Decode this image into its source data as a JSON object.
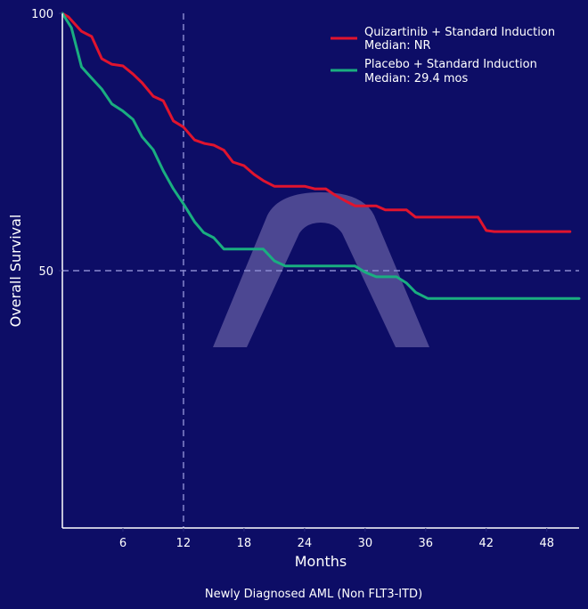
{
  "chart_data": {
    "type": "line",
    "subtype": "kaplan-meier",
    "title": "",
    "subtitle": "Newly Diagnosed AML (Non FLT3-ITD)",
    "xlabel": "Months",
    "ylabel": "Overall Survival",
    "xlim": [
      0,
      51.2
    ],
    "ylim": [
      0,
      100
    ],
    "xticks": [
      6,
      12,
      18,
      24,
      30,
      36,
      42,
      48
    ],
    "yticks": [
      50,
      100
    ],
    "reference_lines": {
      "vertical_x": 12,
      "horizontal_y": 50
    },
    "grid": false,
    "legend_position": "top-right",
    "colors": {
      "background": "#0d0d66",
      "axis": "#ffffff",
      "reference": "#8a8ad0",
      "watermark": "#5a549c"
    },
    "watermark": "arch-logo",
    "series": [
      {
        "name": "Quizartinib + Standard Induction",
        "median_label": "Median: NR",
        "color": "#e0142e",
        "x": [
          0,
          0.6,
          1.9,
          2.9,
          3.9,
          4.9,
          6.0,
          7.0,
          7.9,
          9.0,
          10.0,
          11.0,
          12.0,
          13.1,
          14.1,
          15.0,
          16.0,
          16.9,
          18.0,
          19.0,
          19.9,
          21.0,
          24.0,
          25.0,
          26.1,
          27.0,
          28.1,
          29.0,
          31.1,
          32.0,
          34.1,
          35.0,
          41.2,
          42.0,
          42.8,
          50.3
        ],
        "y": [
          100,
          99.3,
          96.5,
          95.5,
          91.2,
          90.1,
          89.8,
          88.2,
          86.5,
          83.9,
          83.0,
          79.1,
          77.9,
          75.4,
          74.7,
          74.4,
          73.4,
          71.1,
          70.4,
          68.7,
          67.5,
          66.4,
          66.4,
          65.9,
          65.9,
          64.7,
          63.5,
          62.6,
          62.6,
          61.8,
          61.8,
          60.4,
          60.4,
          57.8,
          57.6,
          57.6
        ]
      },
      {
        "name": "Placebo + Standard Induction",
        "median_label": "Median: 29.4 mos",
        "color": "#1aae80",
        "x": [
          0,
          0.9,
          1.9,
          2.9,
          3.9,
          4.9,
          6.0,
          7.0,
          7.9,
          9.0,
          10.0,
          11.0,
          12.0,
          13.1,
          14.0,
          15.0,
          16.0,
          19.9,
          21.0,
          22.1,
          29.0,
          30.0,
          31.1,
          33.1,
          34.1,
          35.0,
          36.2,
          51.2
        ],
        "y": [
          100,
          97.2,
          89.6,
          87.4,
          85.3,
          82.4,
          81.0,
          79.4,
          76.0,
          73.5,
          69.4,
          65.9,
          63.0,
          59.5,
          57.4,
          56.4,
          54.2,
          54.2,
          51.9,
          50.9,
          50.9,
          49.7,
          48.8,
          48.8,
          47.6,
          45.8,
          44.6,
          44.6
        ]
      }
    ]
  }
}
